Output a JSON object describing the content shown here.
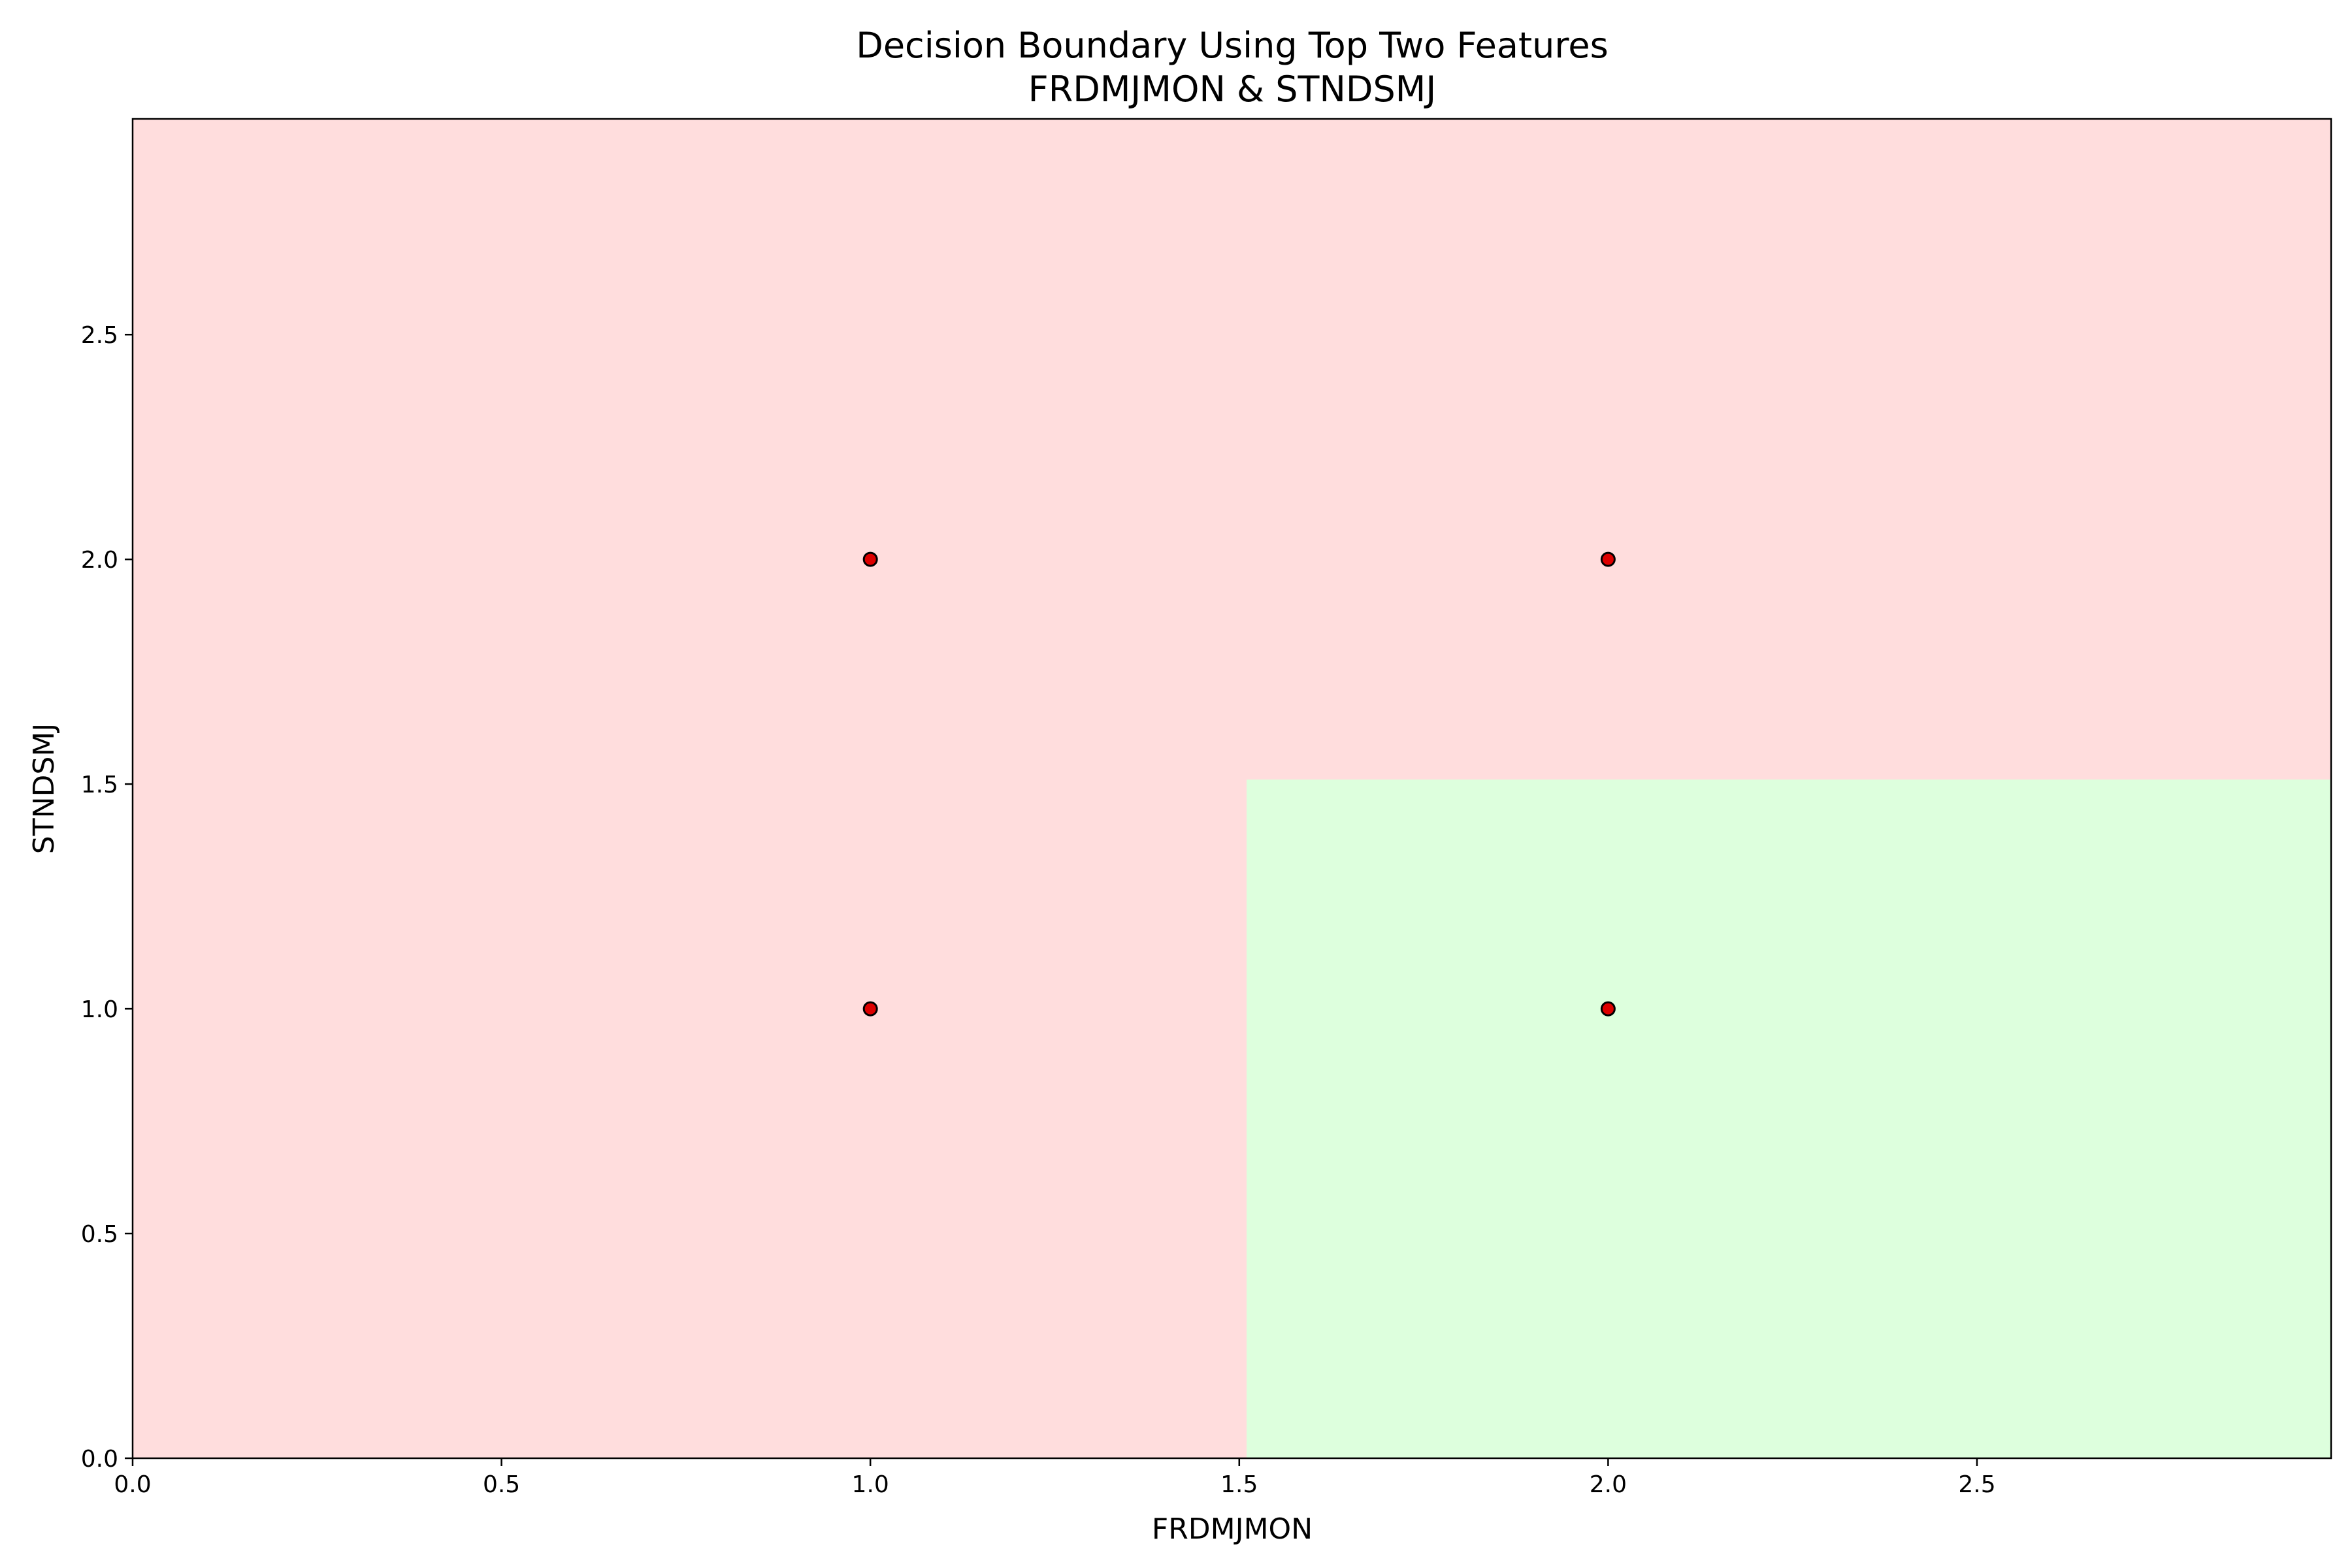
{
  "chart_data": {
    "type": "scatter",
    "title": "Decision Boundary Using Top Two Features",
    "subtitle": "FRDMJMON & STNDSMJ",
    "xlabel": "FRDMJMON",
    "ylabel": "STNDSMJ",
    "xlim": [
      0.0,
      2.98
    ],
    "ylim": [
      0.0,
      2.98
    ],
    "xticks": [
      "0.0",
      "0.5",
      "1.0",
      "1.5",
      "2.0",
      "2.5"
    ],
    "yticks": [
      "0.0",
      "0.5",
      "1.0",
      "1.5",
      "2.0",
      "2.5"
    ],
    "xtick_values": [
      0.0,
      0.5,
      1.0,
      1.5,
      2.0,
      2.5
    ],
    "ytick_values": [
      0.0,
      0.5,
      1.0,
      1.5,
      2.0,
      2.5
    ],
    "grid": false,
    "legend": "none",
    "regions": [
      {
        "class": "negative",
        "color": "#ffdddd",
        "x_range": [
          0.0,
          2.98
        ],
        "y_range": [
          0.0,
          2.98
        ]
      },
      {
        "class": "positive",
        "color": "#ddffdd",
        "x_range": [
          1.51,
          2.98
        ],
        "y_range": [
          0.0,
          1.51
        ]
      }
    ],
    "points": [
      {
        "x": 1.0,
        "y": 2.0
      },
      {
        "x": 2.0,
        "y": 2.0
      },
      {
        "x": 1.0,
        "y": 1.0
      },
      {
        "x": 2.0,
        "y": 1.0
      }
    ],
    "point_color": "#dd0000",
    "point_edge_color": "#000000"
  }
}
